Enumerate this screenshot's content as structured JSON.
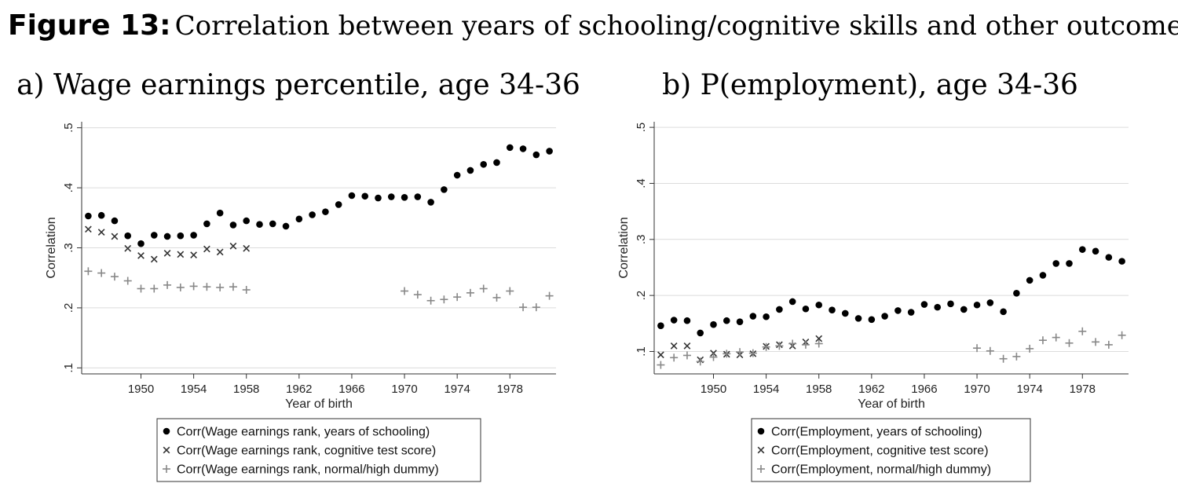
{
  "figure": {
    "label": "Figure 13:",
    "title": "Correlation between years of schooling/cognitive skills and other outcomes"
  },
  "chart_data": [
    {
      "type": "scatter",
      "title": "a) Wage earnings percentile, age 34-36",
      "xlabel": "Year of birth",
      "ylabel": "Correlation",
      "xlim": [
        1945.5,
        1981.5
      ],
      "ylim": [
        0.09,
        0.51
      ],
      "xticks": [
        1950,
        1954,
        1958,
        1962,
        1966,
        1970,
        1974,
        1978
      ],
      "xtick_labels": [
        "1950",
        "1954",
        "1958",
        "1962",
        "1966",
        "1970",
        "1974",
        "1978"
      ],
      "yticks": [
        0.1,
        0.2,
        0.3,
        0.4,
        0.5
      ],
      "ytick_labels": [
        ".1",
        ".2",
        ".3",
        ".4",
        ".5"
      ],
      "grid": true,
      "legend_position": "bottom",
      "series": [
        {
          "name": "Corr(Wage earnings rank, years of schooling)",
          "marker": "dot",
          "color": "#000000",
          "points": [
            [
              1946,
              0.353
            ],
            [
              1947,
              0.354
            ],
            [
              1948,
              0.345
            ],
            [
              1949,
              0.32
            ],
            [
              1950,
              0.307
            ],
            [
              1951,
              0.321
            ],
            [
              1952,
              0.319
            ],
            [
              1953,
              0.32
            ],
            [
              1954,
              0.321
            ],
            [
              1955,
              0.34
            ],
            [
              1956,
              0.358
            ],
            [
              1957,
              0.338
            ],
            [
              1958,
              0.345
            ],
            [
              1959,
              0.339
            ],
            [
              1960,
              0.34
            ],
            [
              1961,
              0.336
            ],
            [
              1962,
              0.348
            ],
            [
              1963,
              0.355
            ],
            [
              1964,
              0.36
            ],
            [
              1965,
              0.372
            ],
            [
              1966,
              0.387
            ],
            [
              1967,
              0.386
            ],
            [
              1968,
              0.383
            ],
            [
              1969,
              0.385
            ],
            [
              1970,
              0.384
            ],
            [
              1971,
              0.385
            ],
            [
              1972,
              0.376
            ],
            [
              1973,
              0.397
            ],
            [
              1974,
              0.421
            ],
            [
              1975,
              0.429
            ],
            [
              1976,
              0.439
            ],
            [
              1977,
              0.442
            ],
            [
              1978,
              0.467
            ],
            [
              1979,
              0.465
            ],
            [
              1980,
              0.455
            ],
            [
              1981,
              0.461
            ]
          ]
        },
        {
          "name": "Corr(Wage earnings rank, cognitive test score)",
          "marker": "x",
          "color": "#333333",
          "points": [
            [
              1946,
              0.331
            ],
            [
              1947,
              0.326
            ],
            [
              1948,
              0.319
            ],
            [
              1949,
              0.299
            ],
            [
              1950,
              0.287
            ],
            [
              1951,
              0.281
            ],
            [
              1952,
              0.291
            ],
            [
              1953,
              0.289
            ],
            [
              1954,
              0.288
            ],
            [
              1955,
              0.298
            ],
            [
              1956,
              0.293
            ],
            [
              1957,
              0.303
            ],
            [
              1958,
              0.299
            ]
          ]
        },
        {
          "name": "Corr(Wage earnings rank, normal/high dummy)",
          "marker": "plus",
          "color": "#888888",
          "points": [
            [
              1946,
              0.261
            ],
            [
              1947,
              0.258
            ],
            [
              1948,
              0.252
            ],
            [
              1949,
              0.245
            ],
            [
              1950,
              0.232
            ],
            [
              1951,
              0.232
            ],
            [
              1952,
              0.238
            ],
            [
              1953,
              0.234
            ],
            [
              1954,
              0.236
            ],
            [
              1955,
              0.235
            ],
            [
              1956,
              0.234
            ],
            [
              1957,
              0.235
            ],
            [
              1958,
              0.23
            ],
            [
              1970,
              0.228
            ],
            [
              1971,
              0.222
            ],
            [
              1972,
              0.212
            ],
            [
              1973,
              0.214
            ],
            [
              1974,
              0.218
            ],
            [
              1975,
              0.225
            ],
            [
              1976,
              0.232
            ],
            [
              1977,
              0.217
            ],
            [
              1978,
              0.228
            ],
            [
              1979,
              0.201
            ],
            [
              1980,
              0.201
            ],
            [
              1981,
              0.22
            ]
          ]
        }
      ]
    },
    {
      "type": "scatter",
      "title": "b) P(employment), age 34-36",
      "xlabel": "Year of birth",
      "ylabel": "Correlation",
      "xlim": [
        1945.5,
        1981.5
      ],
      "ylim": [
        0.06,
        0.51
      ],
      "xticks": [
        1950,
        1954,
        1958,
        1962,
        1966,
        1970,
        1974,
        1978
      ],
      "xtick_labels": [
        "1950",
        "1954",
        "1958",
        "1962",
        "1966",
        "1970",
        "1974",
        "1978"
      ],
      "yticks": [
        0.1,
        0.2,
        0.3,
        0.4,
        0.5
      ],
      "ytick_labels": [
        ".1",
        ".2",
        ".3",
        ".4",
        ".5"
      ],
      "grid": true,
      "legend_position": "bottom",
      "series": [
        {
          "name": "Corr(Employment, years of schooling)",
          "marker": "dot",
          "color": "#000000",
          "points": [
            [
              1946,
              0.146
            ],
            [
              1947,
              0.156
            ],
            [
              1948,
              0.155
            ],
            [
              1949,
              0.133
            ],
            [
              1950,
              0.148
            ],
            [
              1951,
              0.155
            ],
            [
              1952,
              0.153
            ],
            [
              1953,
              0.163
            ],
            [
              1954,
              0.162
            ],
            [
              1955,
              0.175
            ],
            [
              1956,
              0.189
            ],
            [
              1957,
              0.176
            ],
            [
              1958,
              0.183
            ],
            [
              1959,
              0.174
            ],
            [
              1960,
              0.168
            ],
            [
              1961,
              0.159
            ],
            [
              1962,
              0.157
            ],
            [
              1963,
              0.163
            ],
            [
              1964,
              0.173
            ],
            [
              1965,
              0.17
            ],
            [
              1966,
              0.184
            ],
            [
              1967,
              0.179
            ],
            [
              1968,
              0.185
            ],
            [
              1969,
              0.175
            ],
            [
              1970,
              0.183
            ],
            [
              1971,
              0.187
            ],
            [
              1972,
              0.171
            ],
            [
              1973,
              0.204
            ],
            [
              1974,
              0.227
            ],
            [
              1975,
              0.236
            ],
            [
              1976,
              0.257
            ],
            [
              1977,
              0.257
            ],
            [
              1978,
              0.282
            ],
            [
              1979,
              0.279
            ],
            [
              1980,
              0.268
            ],
            [
              1981,
              0.261
            ]
          ]
        },
        {
          "name": "Corr(Employment, cognitive test score)",
          "marker": "x",
          "color": "#333333",
          "points": [
            [
              1946,
              0.094
            ],
            [
              1947,
              0.11
            ],
            [
              1948,
              0.11
            ],
            [
              1949,
              0.085
            ],
            [
              1950,
              0.097
            ],
            [
              1951,
              0.095
            ],
            [
              1952,
              0.094
            ],
            [
              1953,
              0.096
            ],
            [
              1954,
              0.109
            ],
            [
              1955,
              0.112
            ],
            [
              1956,
              0.11
            ],
            [
              1957,
              0.117
            ],
            [
              1958,
              0.123
            ]
          ]
        },
        {
          "name": "Corr(Employment, normal/high dummy)",
          "marker": "plus",
          "color": "#888888",
          "points": [
            [
              1946,
              0.076
            ],
            [
              1947,
              0.089
            ],
            [
              1948,
              0.093
            ],
            [
              1949,
              0.082
            ],
            [
              1950,
              0.09
            ],
            [
              1951,
              0.096
            ],
            [
              1952,
              0.099
            ],
            [
              1953,
              0.097
            ],
            [
              1954,
              0.108
            ],
            [
              1955,
              0.11
            ],
            [
              1956,
              0.114
            ],
            [
              1957,
              0.112
            ],
            [
              1958,
              0.114
            ],
            [
              1970,
              0.106
            ],
            [
              1971,
              0.101
            ],
            [
              1972,
              0.087
            ],
            [
              1973,
              0.091
            ],
            [
              1974,
              0.105
            ],
            [
              1975,
              0.12
            ],
            [
              1976,
              0.125
            ],
            [
              1977,
              0.115
            ],
            [
              1978,
              0.136
            ],
            [
              1979,
              0.117
            ],
            [
              1980,
              0.112
            ],
            [
              1981,
              0.129
            ]
          ]
        }
      ]
    }
  ]
}
